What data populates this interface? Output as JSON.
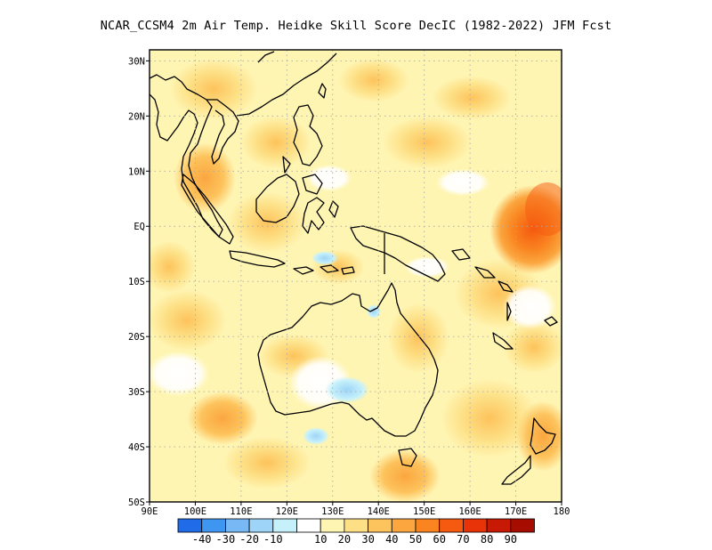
{
  "title": "NCAR_CCSM4  2m Air Temp. Heidke Skill Score DecIC (1982-2022) JFM Fcst",
  "map": {
    "lon_range": [
      90,
      180
    ],
    "lat_range": [
      -50,
      32
    ],
    "x_ticks": [
      {
        "lon": 90,
        "label": "90E"
      },
      {
        "lon": 100,
        "label": "100E"
      },
      {
        "lon": 110,
        "label": "110E"
      },
      {
        "lon": 120,
        "label": "120E"
      },
      {
        "lon": 130,
        "label": "130E"
      },
      {
        "lon": 140,
        "label": "140E"
      },
      {
        "lon": 150,
        "label": "150E"
      },
      {
        "lon": 160,
        "label": "160E"
      },
      {
        "lon": 170,
        "label": "170E"
      },
      {
        "lon": 180,
        "label": "180"
      }
    ],
    "y_ticks": [
      {
        "lat": 30,
        "label": "30N"
      },
      {
        "lat": 20,
        "label": "20N"
      },
      {
        "lat": 10,
        "label": "10N"
      },
      {
        "lat": 0,
        "label": "EQ"
      },
      {
        "lat": -10,
        "label": "10S"
      },
      {
        "lat": -20,
        "label": "20S"
      },
      {
        "lat": -30,
        "label": "30S"
      },
      {
        "lat": -40,
        "label": "40S"
      },
      {
        "lat": -50,
        "label": "50S"
      }
    ],
    "grid": "dotted"
  },
  "colorbar": {
    "colors": [
      "#1f6be8",
      "#3f96f0",
      "#78b9f5",
      "#9ed4f7",
      "#c6f1fb",
      "#ffffff",
      "#fff5b3",
      "#fde086",
      "#fdc35c",
      "#fba63f",
      "#f98420",
      "#f55a10",
      "#e83308",
      "#c81904",
      "#a60c00"
    ],
    "labels": [
      "-40",
      "-30",
      "-20",
      "-10",
      "10",
      "20",
      "30",
      "40",
      "50",
      "60",
      "70",
      "80",
      "90"
    ]
  },
  "highlights": [
    {
      "name": "equatorial-pacific-max",
      "lon": 176,
      "lat": -1,
      "level": 60
    }
  ]
}
